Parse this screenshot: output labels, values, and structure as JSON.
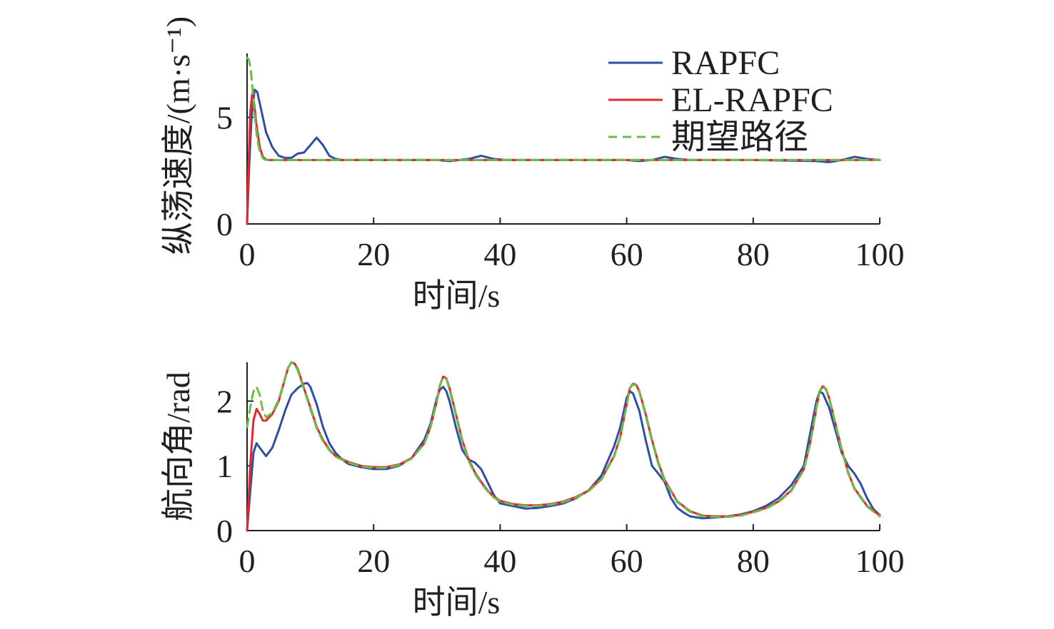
{
  "colors": {
    "RAPFC": "#2e4fa3",
    "EL-RAPFC": "#e8262f",
    "期望路径": "#6cbd45",
    "axis": "#231f20"
  },
  "chart_data": [
    {
      "type": "line",
      "xlabel": "时间/s",
      "ylabel": "纵荡速度/(m·s⁻¹)",
      "xlim": [
        0,
        100
      ],
      "ylim": [
        0,
        8
      ],
      "xticks": [
        "0",
        "20",
        "40",
        "60",
        "80",
        "100"
      ],
      "yticks": [
        "0",
        "5"
      ],
      "legend": {
        "position": "top-right",
        "entries": [
          "RAPFC",
          "EL-RAPFC",
          "期望路径"
        ]
      },
      "series": [
        {
          "name": "RAPFC",
          "style": "solid",
          "x": [
            0,
            0.3,
            0.7,
            1.2,
            1.6,
            2.2,
            3.0,
            4.0,
            5.0,
            6.0,
            7.0,
            8.0,
            9.0,
            10.0,
            11.0,
            12.0,
            13.0,
            14.0,
            15.0,
            20.0,
            25.0,
            30.0,
            32.0,
            35.0,
            37.0,
            39.0,
            41.0,
            50.0,
            60.0,
            62.0,
            64.0,
            66.0,
            68.0,
            70.0,
            80.0,
            90.0,
            92.0,
            94.0,
            96.0,
            98.0,
            100.0
          ],
          "y": [
            0,
            2.5,
            5.0,
            6.3,
            6.2,
            5.4,
            4.3,
            3.6,
            3.2,
            3.1,
            3.1,
            3.3,
            3.35,
            3.7,
            4.05,
            3.7,
            3.2,
            3.05,
            3.0,
            3.0,
            3.0,
            3.0,
            2.95,
            3.05,
            3.2,
            3.05,
            3.0,
            3.0,
            3.0,
            2.95,
            3.0,
            3.15,
            3.05,
            3.0,
            3.0,
            2.95,
            2.9,
            3.0,
            3.15,
            3.05,
            3.0
          ]
        },
        {
          "name": "EL-RAPFC",
          "style": "solid",
          "x": [
            0,
            0.2,
            0.5,
            0.8,
            1.1,
            1.5,
            2.0,
            2.5,
            3.0,
            3.5,
            4.0,
            10.0,
            20.0,
            30.0,
            40.0,
            50.0,
            60.0,
            70.0,
            80.0,
            90.0,
            100.0
          ],
          "y": [
            0,
            2.5,
            5.2,
            6.1,
            5.7,
            4.6,
            3.6,
            3.15,
            3.02,
            3.0,
            3.0,
            3.0,
            3.0,
            3.0,
            3.0,
            3.0,
            3.0,
            3.0,
            3.0,
            3.0,
            3.0
          ]
        },
        {
          "name": "期望路径",
          "style": "dashed",
          "x": [
            0,
            0.3,
            0.6,
            0.9,
            1.2,
            1.6,
            2.0,
            2.5,
            3.0,
            3.5,
            4.0,
            10.0,
            20.0,
            30.0,
            40.0,
            50.0,
            60.0,
            70.0,
            80.0,
            90.0,
            100.0
          ],
          "y": [
            7.8,
            7.7,
            7.2,
            6.2,
            5.1,
            4.0,
            3.4,
            3.08,
            3.0,
            3.0,
            3.0,
            3.0,
            3.0,
            3.0,
            3.0,
            3.0,
            3.0,
            3.0,
            3.0,
            3.0,
            3.0
          ]
        }
      ]
    },
    {
      "type": "line",
      "xlabel": "时间/s",
      "ylabel": "航向角/rad",
      "xlim": [
        0,
        100
      ],
      "ylim": [
        0,
        2.6
      ],
      "xticks": [
        "0",
        "20",
        "40",
        "60",
        "80",
        "100"
      ],
      "yticks": [
        "0",
        "1",
        "2"
      ],
      "series": [
        {
          "name": "RAPFC",
          "style": "solid",
          "x": [
            0,
            0.5,
            1.0,
            1.5,
            2.0,
            3.0,
            4.0,
            5.0,
            6.0,
            7.0,
            8.0,
            9.0,
            9.5,
            10.0,
            11.0,
            12.0,
            13.0,
            14.0,
            15.0,
            16.0,
            18.0,
            20.0,
            22.0,
            24.0,
            26.0,
            28.0,
            29.0,
            30.0,
            30.5,
            31.0,
            31.5,
            32.0,
            33.0,
            34.0,
            35.0,
            36.0,
            37.0,
            38.0,
            39.0,
            40.0,
            42.0,
            44.0,
            46.0,
            48.0,
            50.0,
            52.0,
            54.0,
            56.0,
            58.0,
            59.0,
            60.0,
            60.5,
            61.0,
            62.0,
            63.0,
            64.0,
            65.0,
            66.0,
            67.0,
            68.0,
            69.0,
            70.0,
            72.0,
            74.0,
            76.0,
            78.0,
            80.0,
            82.0,
            84.0,
            86.0,
            88.0,
            89.0,
            90.0,
            90.5,
            91.0,
            92.0,
            93.0,
            94.0,
            95.0,
            96.0,
            97.0,
            98.0,
            99.0,
            100.0
          ],
          "y": [
            0,
            0.6,
            1.2,
            1.35,
            1.28,
            1.15,
            1.28,
            1.55,
            1.85,
            2.1,
            2.2,
            2.27,
            2.28,
            2.22,
            1.95,
            1.6,
            1.35,
            1.2,
            1.1,
            1.03,
            0.98,
            0.95,
            0.95,
            1.0,
            1.12,
            1.4,
            1.65,
            2.05,
            2.18,
            2.22,
            2.15,
            2.0,
            1.6,
            1.25,
            1.1,
            1.05,
            0.95,
            0.75,
            0.55,
            0.42,
            0.38,
            0.34,
            0.35,
            0.38,
            0.42,
            0.5,
            0.62,
            0.85,
            1.3,
            1.6,
            2.05,
            2.15,
            2.12,
            1.85,
            1.4,
            1.0,
            0.88,
            0.75,
            0.5,
            0.35,
            0.28,
            0.22,
            0.19,
            0.2,
            0.22,
            0.25,
            0.3,
            0.38,
            0.5,
            0.7,
            1.0,
            1.5,
            2.0,
            2.15,
            2.12,
            1.9,
            1.55,
            1.2,
            1.0,
            0.88,
            0.72,
            0.5,
            0.33,
            0.24
          ]
        },
        {
          "name": "EL-RAPFC",
          "style": "solid",
          "x": [
            0,
            0.5,
            1.0,
            1.5,
            2.0,
            2.5,
            3.0,
            4.0,
            5.0,
            6.0,
            6.5,
            7.0,
            7.5,
            8.0,
            9.0,
            10.0,
            11.0,
            12.0,
            13.0,
            14.0,
            16.0,
            18.0,
            20.0,
            22.0,
            24.0,
            26.0,
            28.0,
            29.0,
            30.0,
            30.5,
            31.0,
            31.5,
            32.0,
            33.0,
            34.0,
            35.0,
            36.0,
            37.0,
            38.0,
            39.0,
            40.0,
            42.0,
            44.0,
            46.0,
            48.0,
            50.0,
            52.0,
            54.0,
            56.0,
            58.0,
            59.0,
            60.0,
            60.5,
            61.0,
            61.5,
            62.0,
            63.0,
            64.0,
            65.0,
            66.0,
            68.0,
            70.0,
            72.0,
            74.0,
            76.0,
            78.0,
            80.0,
            82.0,
            84.0,
            86.0,
            88.0,
            89.0,
            90.0,
            90.5,
            91.0,
            91.5,
            92.0,
            93.0,
            94.0,
            95.0,
            96.0,
            98.0,
            100.0
          ],
          "y": [
            0,
            1.0,
            1.7,
            1.88,
            1.8,
            1.7,
            1.7,
            1.8,
            2.0,
            2.35,
            2.52,
            2.6,
            2.58,
            2.5,
            2.2,
            1.9,
            1.6,
            1.4,
            1.25,
            1.15,
            1.06,
            1.0,
            0.98,
            0.98,
            1.02,
            1.12,
            1.35,
            1.6,
            2.0,
            2.25,
            2.38,
            2.35,
            2.2,
            1.8,
            1.4,
            1.1,
            0.9,
            0.75,
            0.62,
            0.52,
            0.46,
            0.41,
            0.39,
            0.39,
            0.41,
            0.45,
            0.52,
            0.62,
            0.8,
            1.15,
            1.45,
            1.95,
            2.2,
            2.27,
            2.25,
            2.15,
            1.8,
            1.4,
            1.05,
            0.78,
            0.45,
            0.3,
            0.23,
            0.22,
            0.22,
            0.24,
            0.29,
            0.35,
            0.45,
            0.62,
            0.95,
            1.35,
            1.9,
            2.15,
            2.23,
            2.18,
            2.05,
            1.65,
            1.25,
            0.9,
            0.65,
            0.38,
            0.23
          ]
        },
        {
          "name": "期望路径",
          "style": "dashed",
          "x": [
            0,
            0.5,
            1.0,
            1.5,
            2.0,
            2.5,
            3.0,
            4.0,
            5.0,
            6.0,
            6.5,
            7.0,
            7.5,
            8.0,
            9.0,
            10.0,
            11.0,
            12.0,
            13.0,
            14.0,
            16.0,
            18.0,
            20.0,
            22.0,
            24.0,
            26.0,
            28.0,
            29.0,
            30.0,
            30.5,
            31.0,
            31.5,
            32.0,
            33.0,
            34.0,
            35.0,
            36.0,
            37.0,
            38.0,
            39.0,
            40.0,
            42.0,
            44.0,
            46.0,
            48.0,
            50.0,
            52.0,
            54.0,
            56.0,
            58.0,
            59.0,
            60.0,
            60.5,
            61.0,
            61.5,
            62.0,
            63.0,
            64.0,
            65.0,
            66.0,
            68.0,
            70.0,
            72.0,
            74.0,
            76.0,
            78.0,
            80.0,
            82.0,
            84.0,
            86.0,
            88.0,
            89.0,
            90.0,
            90.5,
            91.0,
            91.5,
            92.0,
            93.0,
            94.0,
            95.0,
            96.0,
            98.0,
            100.0
          ],
          "y": [
            1.6,
            1.9,
            2.15,
            2.22,
            2.1,
            1.85,
            1.75,
            1.82,
            2.02,
            2.36,
            2.52,
            2.6,
            2.57,
            2.48,
            2.18,
            1.88,
            1.58,
            1.38,
            1.24,
            1.14,
            1.05,
            0.99,
            0.97,
            0.97,
            1.01,
            1.11,
            1.34,
            1.6,
            2.0,
            2.25,
            2.37,
            2.34,
            2.18,
            1.78,
            1.38,
            1.08,
            0.88,
            0.73,
            0.61,
            0.51,
            0.45,
            0.4,
            0.38,
            0.38,
            0.4,
            0.44,
            0.51,
            0.61,
            0.79,
            1.14,
            1.44,
            1.94,
            2.2,
            2.26,
            2.24,
            2.14,
            1.78,
            1.38,
            1.03,
            0.76,
            0.44,
            0.29,
            0.22,
            0.21,
            0.21,
            0.23,
            0.28,
            0.34,
            0.44,
            0.61,
            0.94,
            1.34,
            1.9,
            2.15,
            2.24,
            2.19,
            2.05,
            1.64,
            1.24,
            0.89,
            0.64,
            0.37,
            0.22
          ]
        }
      ]
    }
  ]
}
